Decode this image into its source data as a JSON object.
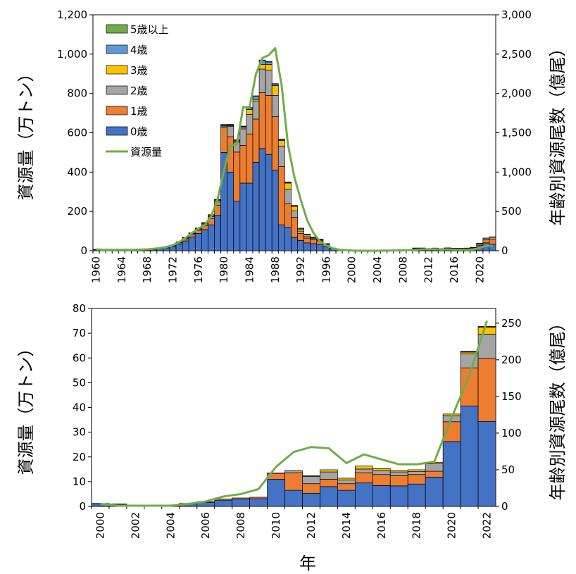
{
  "colors": {
    "age0": "#4472C4",
    "age1": "#ED7D31",
    "age2": "#A5A5A5",
    "age3": "#FFC000",
    "age4": "#5B9BD5",
    "age5plus": "#70AD47",
    "biomass_line": "#70AD47"
  },
  "xlabel": "年",
  "legend": {
    "placement": "top-left",
    "items": [
      "5歳以上",
      "4歳",
      "3歳",
      "2歳",
      "1歳",
      "0歳",
      "資源量"
    ]
  },
  "chart_data": [
    {
      "type": "bar",
      "stacked": true,
      "ylabel": "資源量（万トン）",
      "y2label": "年齢別資源尾数（億尾）",
      "ylim": [
        0,
        1200
      ],
      "y2lim": [
        0,
        3000
      ],
      "yticks": [
        "0",
        "200",
        "400",
        "600",
        "800",
        "1,000",
        "1,200"
      ],
      "y2ticks": [
        "0",
        "500",
        "1,000",
        "1,500",
        "2,000",
        "2,500",
        "3,000"
      ],
      "xticks": [
        "1960",
        "1964",
        "1968",
        "1972",
        "1976",
        "1980",
        "1984",
        "1988",
        "1992",
        "1996",
        "2000",
        "2004",
        "2008",
        "2012",
        "2016",
        "2020"
      ],
      "categories": [
        1960,
        1961,
        1962,
        1963,
        1964,
        1965,
        1966,
        1967,
        1968,
        1969,
        1970,
        1971,
        1972,
        1973,
        1974,
        1975,
        1976,
        1977,
        1978,
        1979,
        1980,
        1981,
        1982,
        1983,
        1984,
        1985,
        1986,
        1987,
        1988,
        1989,
        1990,
        1991,
        1992,
        1993,
        1994,
        1995,
        1996,
        1997,
        1998,
        1999,
        2000,
        2001,
        2002,
        2003,
        2004,
        2005,
        2006,
        2007,
        2008,
        2009,
        2010,
        2011,
        2012,
        2013,
        2014,
        2015,
        2016,
        2017,
        2018,
        2019,
        2020,
        2021,
        2022
      ],
      "series": [
        {
          "name": "0歳",
          "axis": "y2",
          "values": [
            12,
            5,
            5,
            5,
            5,
            5,
            5,
            5,
            5,
            12,
            25,
            35,
            55,
            85,
            125,
            175,
            220,
            270,
            330,
            450,
            1250,
            1000,
            630,
            860,
            860,
            1125,
            1300,
            1225,
            1025,
            330,
            300,
            170,
            130,
            100,
            90,
            80,
            50,
            25,
            12,
            5,
            2,
            2,
            2,
            2,
            2,
            2,
            2,
            5,
            5,
            5,
            25,
            15,
            12,
            20,
            15,
            22,
            20,
            20,
            22,
            30,
            65,
            100,
            85
          ]
        },
        {
          "name": "1歳",
          "axis": "y2",
          "values": [
            2,
            2,
            2,
            2,
            2,
            2,
            2,
            2,
            2,
            3,
            5,
            7,
            10,
            15,
            25,
            30,
            40,
            50,
            80,
            130,
            315,
            450,
            625,
            480,
            625,
            550,
            710,
            750,
            680,
            740,
            300,
            255,
            90,
            60,
            50,
            45,
            30,
            5,
            2,
            2,
            1,
            1,
            1,
            1,
            1,
            1,
            1,
            1,
            1,
            1,
            8,
            15,
            8,
            8,
            8,
            8,
            8,
            8,
            8,
            10,
            20,
            40,
            62
          ]
        },
        {
          "name": "2歳",
          "axis": "y2",
          "values": [
            1,
            1,
            1,
            1,
            1,
            1,
            1,
            1,
            1,
            1,
            2,
            3,
            5,
            8,
            10,
            12,
            15,
            20,
            25,
            40,
            20,
            130,
            125,
            210,
            250,
            230,
            300,
            320,
            270,
            260,
            180,
            80,
            30,
            20,
            15,
            10,
            5,
            2,
            1,
            1,
            0,
            0,
            0,
            0,
            0,
            0,
            0,
            0,
            0,
            0,
            2,
            5,
            5,
            5,
            2,
            5,
            3,
            3,
            3,
            3,
            10,
            20,
            25
          ]
        },
        {
          "name": "3歳",
          "axis": "y2",
          "values": [
            0,
            0,
            0,
            0,
            0,
            0,
            0,
            0,
            0,
            0,
            1,
            1,
            2,
            3,
            5,
            5,
            8,
            10,
            15,
            20,
            10,
            10,
            15,
            15,
            60,
            20,
            60,
            75,
            125,
            70,
            80,
            60,
            25,
            20,
            10,
            8,
            3,
            1,
            0,
            0,
            0,
            0,
            0,
            0,
            0,
            0,
            0,
            0,
            0,
            0,
            0,
            0,
            1,
            1,
            1,
            1,
            1,
            1,
            1,
            0,
            1,
            1,
            5
          ]
        },
        {
          "name": "4歳",
          "axis": "y2",
          "values": [
            0,
            0,
            0,
            0,
            0,
            0,
            0,
            0,
            0,
            0,
            0,
            0,
            1,
            2,
            3,
            3,
            4,
            5,
            6,
            8,
            5,
            12,
            10,
            15,
            20,
            40,
            50,
            30,
            20,
            15,
            10,
            8,
            10,
            8,
            5,
            3,
            2,
            1,
            0,
            0,
            0,
            0,
            0,
            0,
            0,
            0,
            0,
            0,
            0,
            0,
            0,
            0,
            0,
            0,
            0,
            0,
            0,
            0,
            0,
            0,
            0,
            0,
            0
          ]
        },
        {
          "name": "5歳以上",
          "axis": "y2",
          "values": [
            0,
            0,
            0,
            0,
            0,
            0,
            0,
            0,
            0,
            0,
            0,
            0,
            0,
            1,
            2,
            2,
            2,
            3,
            3,
            5,
            5,
            5,
            5,
            5,
            5,
            5,
            5,
            5,
            5,
            5,
            5,
            3,
            2,
            2,
            2,
            1,
            1,
            0,
            0,
            0,
            0,
            0,
            0,
            0,
            0,
            0,
            0,
            0,
            0,
            0,
            0,
            0,
            0,
            0,
            0,
            0,
            0,
            0,
            0,
            0,
            0,
            0,
            0
          ]
        }
      ],
      "line": {
        "name": "資源量",
        "axis": "y",
        "values": [
          7,
          5,
          5,
          5,
          5,
          5,
          5,
          6,
          7,
          10,
          14,
          19,
          28,
          44,
          66,
          90,
          113,
          131,
          176,
          262,
          410,
          535,
          540,
          730,
          730,
          900,
          980,
          995,
          1030,
          845,
          540,
          375,
          260,
          155,
          90,
          48,
          28,
          12,
          5,
          3,
          1,
          0,
          0,
          0,
          0,
          1,
          1,
          2,
          2,
          3,
          5,
          7,
          8,
          8,
          6,
          7,
          6,
          6,
          6,
          6,
          14,
          26,
          24
        ]
      }
    },
    {
      "type": "bar",
      "stacked": true,
      "ylabel": "資源量（万トン）",
      "y2label": "年齢別資源尾数（億尾）",
      "ylim": [
        0,
        80
      ],
      "y2lim": [
        0,
        270
      ],
      "yticks": [
        "0",
        "10",
        "20",
        "30",
        "40",
        "50",
        "60",
        "70",
        "80"
      ],
      "y2ticks": [
        "0",
        "50",
        "100",
        "150",
        "200",
        "250"
      ],
      "xticks": [
        "2000",
        "2002",
        "2004",
        "2006",
        "2008",
        "2010",
        "2012",
        "2014",
        "2016",
        "2018",
        "2020",
        "2022"
      ],
      "categories": [
        2000,
        2001,
        2002,
        2003,
        2004,
        2005,
        2006,
        2007,
        2008,
        2009,
        2010,
        2011,
        2012,
        2013,
        2014,
        2015,
        2016,
        2017,
        2018,
        2019,
        2020,
        2021,
        2022
      ],
      "series": [
        {
          "name": "0歳",
          "axis": "y2",
          "values": [
            3.5,
            3.0,
            1.2,
            1.0,
            1.2,
            3.5,
            5.5,
            8.5,
            10.0,
            10.5,
            37.0,
            22.0,
            18.0,
            27.0,
            22.0,
            32.0,
            28.5,
            28.0,
            30.5,
            40.0,
            88.5,
            137.0,
            116.0
          ]
        },
        {
          "name": "1歳",
          "axis": "y2",
          "values": [
            0.5,
            0.3,
            0.2,
            0.2,
            0.3,
            0.6,
            1.0,
            1.7,
            1.5,
            2.0,
            8.0,
            24.0,
            13.0,
            10.0,
            9.0,
            14.0,
            15.0,
            14.0,
            13.0,
            8.0,
            27.0,
            52.0,
            86.0
          ]
        },
        {
          "name": "2歳",
          "axis": "y2",
          "values": [
            0,
            0,
            0,
            0,
            0,
            0,
            0,
            0,
            0,
            0,
            0.5,
            3.0,
            10.0,
            10.0,
            5.0,
            5.0,
            5.0,
            5.0,
            4.0,
            10.0,
            8.0,
            19.0,
            33.0
          ]
        },
        {
          "name": "3歳",
          "axis": "y2",
          "values": [
            0,
            0,
            0,
            0,
            0,
            0,
            0,
            0,
            0,
            0,
            0,
            0,
            1.0,
            3.0,
            2.5,
            4.0,
            3.0,
            2.0,
            2.5,
            2.0,
            2.5,
            2.5,
            9.5
          ]
        },
        {
          "name": "4歳",
          "axis": "y2",
          "values": [
            0,
            0,
            0,
            0,
            0,
            0,
            0,
            0,
            0,
            0,
            0,
            0,
            0,
            0,
            0,
            0,
            0,
            0,
            0,
            0,
            0,
            0.5,
            0.5
          ]
        },
        {
          "name": "5歳以上",
          "axis": "y2",
          "values": [
            0,
            0,
            0,
            0,
            0,
            0,
            0,
            0,
            0,
            0,
            0,
            0,
            0,
            0,
            0,
            0,
            0,
            0,
            0,
            0,
            0,
            0.5,
            0.5
          ]
        }
      ],
      "line": {
        "name": "資源量",
        "axis": "y",
        "values": [
          1.0,
          0.3,
          0.3,
          0.3,
          0.3,
          1.0,
          2.0,
          4.0,
          5.0,
          7.0,
          16.0,
          22.0,
          24.0,
          23.5,
          17.5,
          21.0,
          19.0,
          17.0,
          17.0,
          18.0,
          36.0,
          53.0,
          75.0
        ]
      }
    }
  ]
}
